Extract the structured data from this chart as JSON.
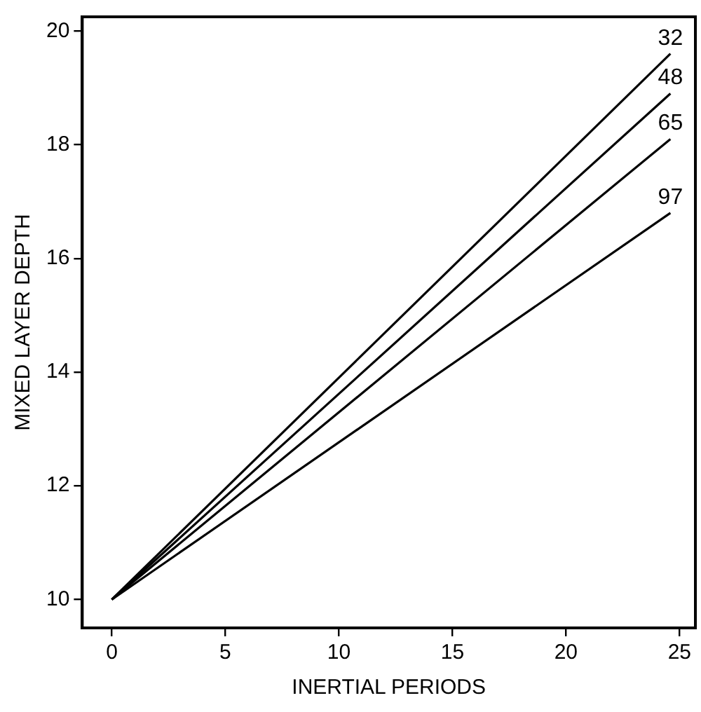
{
  "chart_data": {
    "type": "line",
    "xlabel": "INERTIAL PERIODS",
    "ylabel": "MIXED LAYER DEPTH",
    "x": [
      0,
      24.6
    ],
    "series": [
      {
        "name": "32",
        "color": "#000000",
        "values": [
          10,
          19.6
        ]
      },
      {
        "name": "48",
        "color": "#000000",
        "values": [
          10,
          18.9
        ]
      },
      {
        "name": "65",
        "color": "#000000",
        "values": [
          10,
          18.1
        ]
      },
      {
        "name": "97",
        "color": "#000000",
        "values": [
          10,
          16.8
        ]
      }
    ],
    "xlim": [
      -1.3,
      25.7
    ],
    "xticks": [
      0,
      5,
      10,
      15,
      20,
      25
    ],
    "ylim": [
      9.5,
      20.25
    ],
    "yticks": [
      10,
      12,
      14,
      16,
      18,
      20
    ],
    "grid": false,
    "legend": false,
    "marker": "none",
    "line_style": "solid"
  }
}
